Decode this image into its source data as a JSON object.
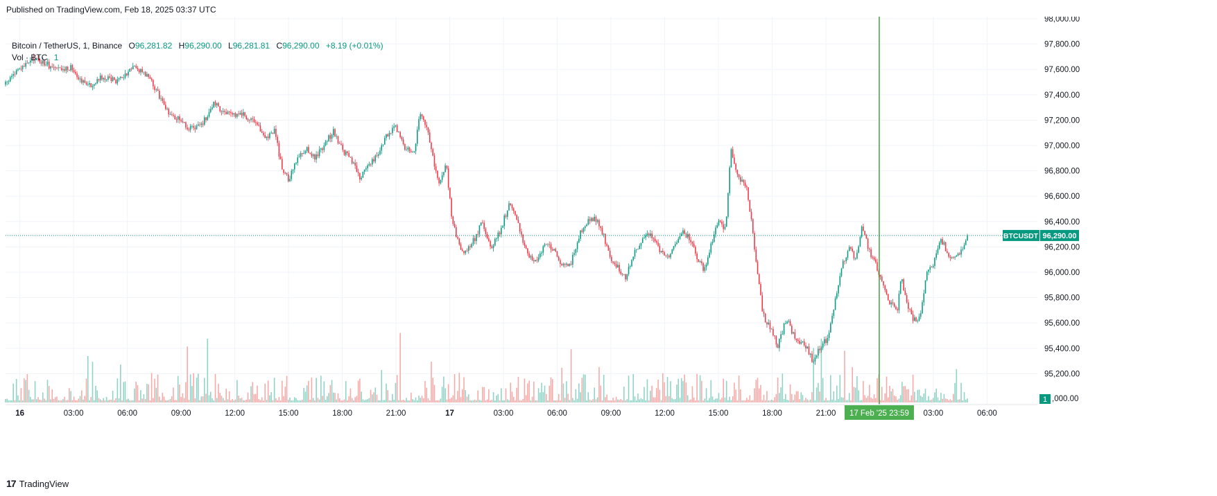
{
  "header": {
    "published": "Published on TradingView.com, Feb 18, 2025 03:37 UTC"
  },
  "legend": {
    "symbol": "Bitcoin / TetherUS, 1, Binance",
    "o_label": "O",
    "o_value": "96,281.82",
    "h_label": "H",
    "h_value": "96,290.00",
    "l_label": "L",
    "l_value": "96,281.81",
    "c_label": "C",
    "c_value": "96,290.00",
    "change": "+8.19 (+0.01%)",
    "vol_label": "Vol · BTC",
    "vol_value": "1"
  },
  "footer": {
    "brand": "TradingView"
  },
  "colors": {
    "up": "#089981",
    "down": "#f23645",
    "vol_up": "#8fd3c6",
    "vol_down": "#f7a9a7",
    "cursor": "#43a047",
    "grid": "#f0f3fa"
  },
  "chart_data": {
    "type": "candlestick",
    "symbol": "BTCUSDT",
    "interval": "1",
    "price_axis": {
      "ticks": [
        95200,
        95400,
        95600,
        95800,
        96000,
        96200,
        96400,
        96600,
        96800,
        97000,
        97200,
        97400,
        97600,
        97800,
        98000
      ],
      "tick_labels": [
        "95,200.00",
        "95,400.00",
        "95,600.00",
        "95,800.00",
        "96,000.00",
        "96,200.00",
        "96,400.00",
        "96,600.00",
        "96,800.00",
        "97,000.00",
        "97,200.00",
        "97,400.00",
        "97,600.00",
        "97,800.00",
        "98,000.00"
      ],
      "range": [
        95000,
        98000
      ],
      "partial_label": ",000.00"
    },
    "time_axis": {
      "ticks": [
        {
          "label": "16",
          "hour": 0,
          "bold": true
        },
        {
          "label": "03:00",
          "hour": 3
        },
        {
          "label": "06:00",
          "hour": 6
        },
        {
          "label": "09:00",
          "hour": 9
        },
        {
          "label": "12:00",
          "hour": 12
        },
        {
          "label": "15:00",
          "hour": 15
        },
        {
          "label": "18:00",
          "hour": 18
        },
        {
          "label": "21:00",
          "hour": 21
        },
        {
          "label": "17",
          "hour": 24,
          "bold": true
        },
        {
          "label": "03:00",
          "hour": 27
        },
        {
          "label": "06:00",
          "hour": 30
        },
        {
          "label": "09:00",
          "hour": 33
        },
        {
          "label": "12:00",
          "hour": 36
        },
        {
          "label": "15:00",
          "hour": 39
        },
        {
          "label": "18:00",
          "hour": 42
        },
        {
          "label": "21:00",
          "hour": 45
        },
        {
          "label": "03:00",
          "hour": 51
        },
        {
          "label": "06:00",
          "hour": 54
        }
      ],
      "range_hours": [
        -0.8,
        56.5
      ]
    },
    "last_price": {
      "symbol": "BTCUSDT",
      "value": 96290.0,
      "label": "96,290.00"
    },
    "volume_badge": "1",
    "crosshair": {
      "hour": 47.98,
      "label": "17 Feb '25   23:59"
    },
    "series": [
      {
        "name": "BTCUSDT",
        "anchors": [
          [
            -0.8,
            97480
          ],
          [
            -0.4,
            97560
          ],
          [
            0.2,
            97620
          ],
          [
            0.8,
            97690
          ],
          [
            1.5,
            97640
          ],
          [
            2.2,
            97590
          ],
          [
            2.9,
            97620
          ],
          [
            3.4,
            97520
          ],
          [
            4.0,
            97470
          ],
          [
            4.6,
            97540
          ],
          [
            5.3,
            97510
          ],
          [
            5.9,
            97560
          ],
          [
            6.3,
            97640
          ],
          [
            6.8,
            97580
          ],
          [
            7.3,
            97520
          ],
          [
            7.8,
            97380
          ],
          [
            8.3,
            97260
          ],
          [
            8.8,
            97220
          ],
          [
            9.3,
            97150
          ],
          [
            9.8,
            97120
          ],
          [
            10.3,
            97200
          ],
          [
            10.8,
            97330
          ],
          [
            11.3,
            97280
          ],
          [
            11.8,
            97230
          ],
          [
            12.3,
            97260
          ],
          [
            12.8,
            97210
          ],
          [
            13.3,
            97140
          ],
          [
            13.8,
            97060
          ],
          [
            14.2,
            97130
          ],
          [
            14.6,
            96840
          ],
          [
            15.0,
            96720
          ],
          [
            15.5,
            96900
          ],
          [
            16.0,
            96980
          ],
          [
            16.5,
            96900
          ],
          [
            17.0,
            97010
          ],
          [
            17.5,
            97110
          ],
          [
            18.0,
            96970
          ],
          [
            18.5,
            96880
          ],
          [
            19.0,
            96740
          ],
          [
            19.5,
            96860
          ],
          [
            20.0,
            96930
          ],
          [
            20.5,
            97080
          ],
          [
            21.0,
            97140
          ],
          [
            21.5,
            96980
          ],
          [
            22.0,
            96920
          ],
          [
            22.3,
            97240
          ],
          [
            22.7,
            97150
          ],
          [
            23.0,
            96950
          ],
          [
            23.4,
            96690
          ],
          [
            23.8,
            96850
          ],
          [
            24.1,
            96460
          ],
          [
            24.4,
            96270
          ],
          [
            24.8,
            96130
          ],
          [
            25.3,
            96240
          ],
          [
            25.8,
            96390
          ],
          [
            26.3,
            96200
          ],
          [
            26.8,
            96320
          ],
          [
            27.3,
            96530
          ],
          [
            27.8,
            96400
          ],
          [
            28.3,
            96150
          ],
          [
            28.8,
            96090
          ],
          [
            29.3,
            96220
          ],
          [
            29.8,
            96180
          ],
          [
            30.3,
            96040
          ],
          [
            30.8,
            96080
          ],
          [
            31.2,
            96280
          ],
          [
            31.7,
            96410
          ],
          [
            32.2,
            96420
          ],
          [
            32.6,
            96280
          ],
          [
            33.0,
            96100
          ],
          [
            33.4,
            96030
          ],
          [
            33.8,
            95960
          ],
          [
            34.2,
            96110
          ],
          [
            34.6,
            96230
          ],
          [
            35.0,
            96310
          ],
          [
            35.4,
            96270
          ],
          [
            35.8,
            96160
          ],
          [
            36.2,
            96130
          ],
          [
            36.6,
            96240
          ],
          [
            37.0,
            96330
          ],
          [
            37.4,
            96260
          ],
          [
            37.8,
            96120
          ],
          [
            38.2,
            96010
          ],
          [
            38.6,
            96220
          ],
          [
            39.0,
            96400
          ],
          [
            39.4,
            96330
          ],
          [
            39.7,
            96970
          ],
          [
            40.0,
            96800
          ],
          [
            40.3,
            96720
          ],
          [
            40.6,
            96650
          ],
          [
            40.9,
            96340
          ],
          [
            41.2,
            95960
          ],
          [
            41.5,
            95660
          ],
          [
            41.9,
            95560
          ],
          [
            42.3,
            95420
          ],
          [
            42.8,
            95630
          ],
          [
            43.2,
            95510
          ],
          [
            43.6,
            95450
          ],
          [
            44.0,
            95390
          ],
          [
            44.3,
            95270
          ],
          [
            44.7,
            95420
          ],
          [
            45.1,
            95480
          ],
          [
            45.5,
            95750
          ],
          [
            45.9,
            96050
          ],
          [
            46.3,
            96180
          ],
          [
            46.7,
            96100
          ],
          [
            47.0,
            96380
          ],
          [
            47.4,
            96170
          ],
          [
            47.8,
            96050
          ],
          [
            48.2,
            95880
          ],
          [
            48.6,
            95750
          ],
          [
            49.0,
            95700
          ],
          [
            49.2,
            95970
          ],
          [
            49.5,
            95760
          ],
          [
            49.9,
            95620
          ],
          [
            50.3,
            95660
          ],
          [
            50.6,
            95980
          ],
          [
            51.0,
            96070
          ],
          [
            51.4,
            96280
          ],
          [
            51.8,
            96150
          ],
          [
            52.2,
            96100
          ],
          [
            52.6,
            96180
          ],
          [
            52.9,
            96290
          ]
        ]
      }
    ]
  }
}
